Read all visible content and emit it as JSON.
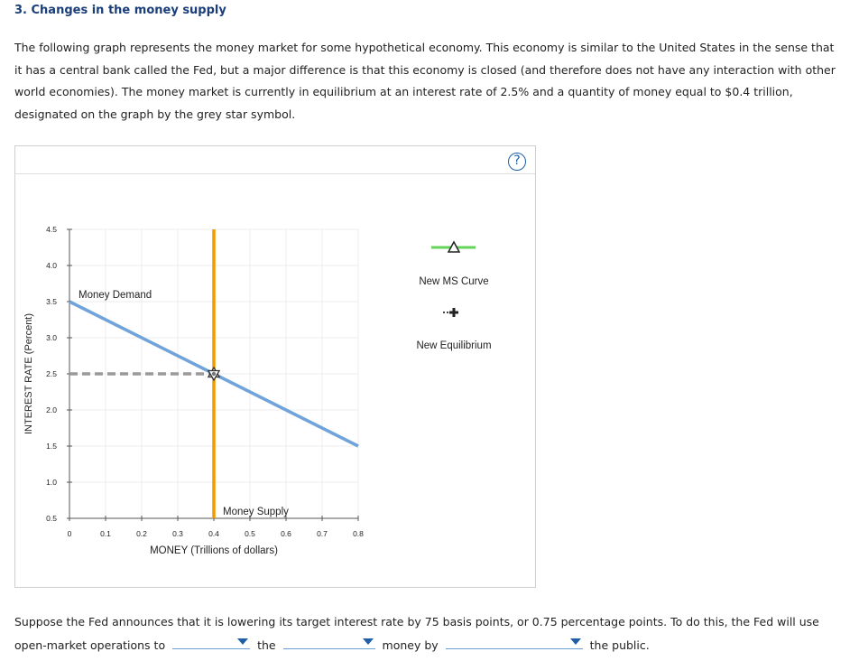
{
  "heading": "3. Changes in the money supply",
  "intro": "The following graph represents the money market for some hypothetical economy. This economy is similar to the United States in the sense that it has a central bank called the Fed, but a major difference is that this economy is closed (and therefore does not have any interaction with other world economies). The money market is currently in equilibrium at an interest rate of 2.5% and a quantity of money equal to $0.4 trillion, designated on the graph by the grey star symbol.",
  "help_label": "?",
  "chart_data": {
    "type": "line",
    "xlabel": "MONEY (Trillions of dollars)",
    "ylabel": "INTEREST RATE (Percent)",
    "xlim": [
      0,
      0.8
    ],
    "ylim": [
      0.5,
      4.5
    ],
    "x_ticks": [
      "0",
      "0.1",
      "0.2",
      "0.3",
      "0.4",
      "0.5",
      "0.6",
      "0.7",
      "0.8"
    ],
    "y_ticks": [
      "0.5",
      "1.0",
      "1.5",
      "2.0",
      "2.5",
      "3.0",
      "3.5",
      "4.0",
      "4.5"
    ],
    "money_demand": {
      "name": "Money Demand",
      "x": [
        0,
        0.8
      ],
      "y": [
        3.5,
        1.5
      ],
      "color": "#6fa3da"
    },
    "money_supply": {
      "name": "Money Supply",
      "x": [
        0.4,
        0.4
      ],
      "y": [
        0.5,
        4.5
      ],
      "color": "#f29a00"
    },
    "equilibrium": {
      "x": 0.4,
      "y": 2.5,
      "color": "#777777"
    },
    "grid": true
  },
  "legend": {
    "new_ms_label": "New MS Curve",
    "new_ms_color": "#66d35a",
    "new_eq_label": "New Equilibrium"
  },
  "question": {
    "part1": "Suppose the Fed announces that it is lowering its target interest rate by 75 basis points, or 0.75 percentage points. To do this, the Fed will use open-market operations to",
    "part2": "the",
    "part3": "money by",
    "part4": "the public."
  }
}
